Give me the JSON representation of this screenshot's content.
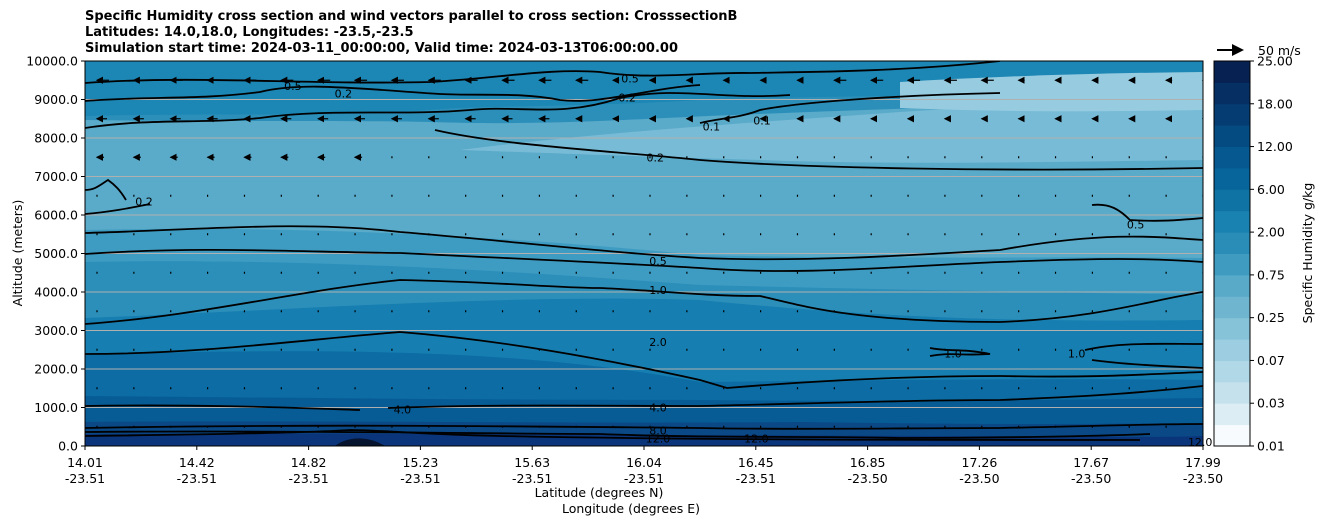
{
  "chart_data": {
    "type": "heatmap",
    "title_lines": [
      "Specific Humidity cross section and wind vectors parallel to cross section: CrosssectionB",
      "Latitudes: 14.0,18.0, Longitudes: -23.5,-23.5",
      "Simulation start time: 2024-03-11_00:00:00, Valid time: 2024-03-13T06:00:00.00"
    ],
    "ylabel": "Altitude (meters)",
    "xlabel_lat": "Latitude (degrees N)",
    "xlabel_lon": "Longitude (degrees E)",
    "ylim": [
      0,
      10000
    ],
    "y_ticks": [
      "0.0",
      "1000.0",
      "2000.0",
      "3000.0",
      "4000.0",
      "5000.0",
      "6000.0",
      "7000.0",
      "8000.0",
      "9000.0",
      "10000.0"
    ],
    "x_ticks": [
      {
        "lat": "14.01",
        "lon": "-23.51"
      },
      {
        "lat": "14.42",
        "lon": "-23.51"
      },
      {
        "lat": "14.82",
        "lon": "-23.51"
      },
      {
        "lat": "15.23",
        "lon": "-23.51"
      },
      {
        "lat": "15.63",
        "lon": "-23.51"
      },
      {
        "lat": "16.04",
        "lon": "-23.51"
      },
      {
        "lat": "16.45",
        "lon": "-23.51"
      },
      {
        "lat": "16.85",
        "lon": "-23.50"
      },
      {
        "lat": "17.26",
        "lon": "-23.50"
      },
      {
        "lat": "17.67",
        "lon": "-23.50"
      },
      {
        "lat": "17.99",
        "lon": "-23.50"
      }
    ],
    "colorbar": {
      "label": "Specific Humidity g/kg",
      "tick_labels": [
        "0.01",
        "0.03",
        "0.07",
        "0.25",
        "0.75",
        "2.00",
        "6.00",
        "12.00",
        "18.00",
        "25.00"
      ],
      "levels": [
        "0.01",
        "0.02",
        "0.03",
        "0.05",
        "0.07",
        "0.1",
        "0.25",
        "0.5",
        "0.75",
        "1.0",
        "2.00",
        "4.0",
        "6.00",
        "8.0",
        "12.00",
        "15.0",
        "18.00",
        "20.0",
        "25.00"
      ],
      "colors": [
        "#f7fbfd",
        "#dcedf3",
        "#c5e2ec",
        "#b0d8e6",
        "#9ccde0",
        "#86c2d8",
        "#6fb5d0",
        "#59a9c8",
        "#3f9bc0",
        "#2a8db8",
        "#1a82b0",
        "#0f73a4",
        "#08659b",
        "#055890",
        "#044b82",
        "#053d72",
        "#062f63",
        "#072252",
        "#071640"
      ]
    },
    "quiver_key": {
      "label": "50 m/s",
      "speed": 50
    },
    "contour_labels": [
      {
        "text": "0.2",
        "lat": 14.93,
        "alt": 9150
      },
      {
        "text": "0.5",
        "lat": 14.75,
        "alt": 9350
      },
      {
        "text": "0.5",
        "lat": 15.95,
        "alt": 9550
      },
      {
        "text": "0.2",
        "lat": 15.94,
        "alt": 9050
      },
      {
        "text": "0.1",
        "lat": 16.24,
        "alt": 8300
      },
      {
        "text": "0.1",
        "lat": 16.42,
        "alt": 8450
      },
      {
        "text": "0.2",
        "lat": 16.04,
        "alt": 7500
      },
      {
        "text": "0.2",
        "lat": 14.22,
        "alt": 6350
      },
      {
        "text": "0.5",
        "lat": 17.75,
        "alt": 5750
      },
      {
        "text": "0.5",
        "lat": 16.05,
        "alt": 4800
      },
      {
        "text": "1.0",
        "lat": 16.05,
        "alt": 4050
      },
      {
        "text": "2.0",
        "lat": 16.05,
        "alt": 2700
      },
      {
        "text": "1.0",
        "lat": 17.1,
        "alt": 2400
      },
      {
        "text": "1.0",
        "lat": 17.54,
        "alt": 2400
      },
      {
        "text": "4.0",
        "lat": 15.14,
        "alt": 950
      },
      {
        "text": "4.0",
        "lat": 16.05,
        "alt": 1000
      },
      {
        "text": "8.0",
        "lat": 16.05,
        "alt": 400
      },
      {
        "text": "12.0",
        "lat": 16.05,
        "alt": 200
      },
      {
        "text": "12.0",
        "lat": 16.4,
        "alt": 200
      },
      {
        "text": "12.0",
        "lat": 17.98,
        "alt": 100
      }
    ]
  }
}
